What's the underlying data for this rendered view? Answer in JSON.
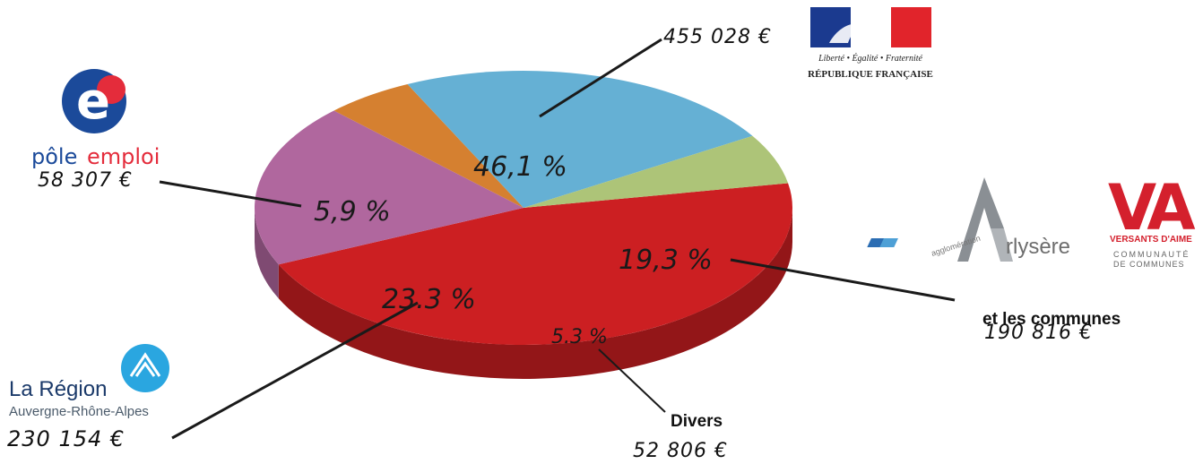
{
  "chart_data": {
    "type": "pie",
    "slices": [
      {
        "key": "etat",
        "percent_label": "46,1 %",
        "value": 455028,
        "amount_label": "455 028 €",
        "color": "#cc1f22"
      },
      {
        "key": "communes",
        "name": "et les communes",
        "percent_label": "19,3 %",
        "value": 190816,
        "amount_label": "190 816 €",
        "color": "#b0679e"
      },
      {
        "key": "divers",
        "name": "Divers",
        "percent_label": "5.3 %",
        "value": 52806,
        "amount_label": "52 806 €",
        "color": "#d58030"
      },
      {
        "key": "region",
        "percent_label": "23.3 %",
        "value": 230154,
        "amount_label": "230 154 €",
        "color": "#65b0d4"
      },
      {
        "key": "pole",
        "percent_label": "5,9 %",
        "value": 58307,
        "amount_label": "58 307 €",
        "color": "#adc478"
      }
    ]
  },
  "logos": {
    "republique": {
      "motto": "Liberté • Égalité • Fraternité",
      "name": "RÉPUBLIQUE FRANÇAISE"
    },
    "pole_emploi": {
      "word1": "pôle",
      "word2": "emploi",
      "letter": "e"
    },
    "region": {
      "name": "La Région",
      "sub": "Auvergne-Rhône-Alpes"
    },
    "arlysere": {
      "prefix": "agglomération",
      "name": "rlysère"
    },
    "versants": {
      "mark": "VA",
      "line1": "VERSANTS D'AIME",
      "line2": "COMMUNAUTÉ",
      "line3": "DE COMMUNES"
    }
  }
}
